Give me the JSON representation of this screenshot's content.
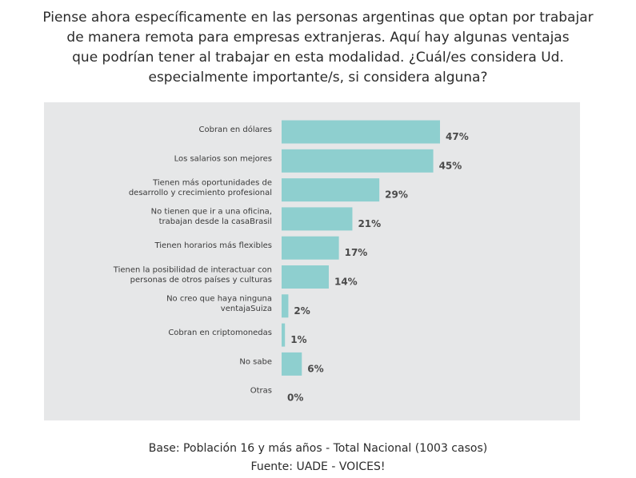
{
  "title_lines": [
    "Piense ahora específicamente en las personas argentinas que optan por trabajar",
    "de manera remota para empresas extranjeras. Aquí hay algunas ventajas",
    "que podrían tener al trabajar en esta modalidad. ¿Cuál/es considera Ud.",
    "especialmente importante/s, si considera alguna?"
  ],
  "footer": {
    "base": "Base: Población 16 y más años - Total Nacional (1003 casos)",
    "source": "Fuente: UADE - VOICES!"
  },
  "colors": {
    "bar": "#8ecfcf",
    "panel": "#e6e7e8",
    "label": "#3a3a3a",
    "value": "#4a4a4a"
  },
  "chart_data": {
    "type": "bar",
    "orientation": "horizontal",
    "title": "Piense ahora específicamente en las personas argentinas que optan por trabajar de manera remota para empresas extranjeras. Aquí hay algunas ventajas que podrían tener al trabajar en esta modalidad. ¿Cuál/es considera Ud. especialmente importante/s, si considera alguna?",
    "unit": "%",
    "xlim": [
      0,
      47
    ],
    "categories": [
      [
        "Cobran en dólares"
      ],
      [
        "Los salarios son mejores"
      ],
      [
        "Tienen más oportunidades de",
        "desarrollo y crecimiento profesional"
      ],
      [
        "No tienen que ir a una oficina,",
        "trabajan desde la casaBrasil"
      ],
      [
        "Tienen horarios más flexibles"
      ],
      [
        "Tienen la posibilidad de interactuar con",
        "personas de otros países y culturas"
      ],
      [
        "No creo que haya ninguna",
        "ventajaSuiza"
      ],
      [
        "Cobran en criptomonedas"
      ],
      [
        "No sabe"
      ],
      [
        "Otras"
      ]
    ],
    "values": [
      47,
      45,
      29,
      21,
      17,
      14,
      2,
      1,
      6,
      0
    ],
    "value_labels": [
      "47%",
      "45%",
      "29%",
      "21%",
      "17%",
      "14%",
      "2%",
      "1%",
      "6%",
      "0%"
    ]
  }
}
